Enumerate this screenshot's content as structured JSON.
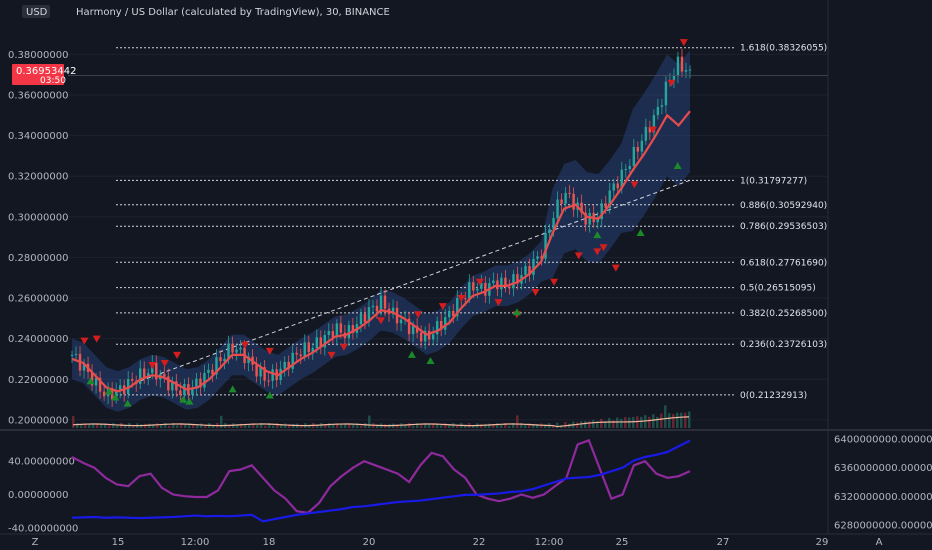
{
  "header": {
    "currency": "USD",
    "title": "Harmony / US Dollar (calculated by TradingView), 30, BINANCE"
  },
  "price_tag": {
    "price": "0.36953442",
    "countdown": "03:50"
  },
  "colors": {
    "background": "#131722",
    "candle_up": "#26a69a",
    "candle_down": "#ef5350",
    "ma_line": "#e84d4d",
    "band_fill": "#2a4a8a",
    "buy_marker": "#1b8a2a",
    "sell_marker": "#d41e1e",
    "volume_ma": "#f2b49a",
    "oscillator": "#8e2a9c",
    "second_line": "#1a1ae6",
    "fib_line": "#d1d4dc"
  },
  "chart_data": [
    {
      "type": "candlestick",
      "title": "Harmony / US Dollar (calculated by TradingView), 30, BINANCE",
      "ylim": [
        0.196,
        0.392
      ],
      "yticks": [
        "0.20000000",
        "0.22000000",
        "0.24000000",
        "0.26000000",
        "0.28000000",
        "0.30000000",
        "0.32000000",
        "0.34000000",
        "0.36000000",
        "0.38000000"
      ],
      "ytick_values": [
        0.2,
        0.22,
        0.24,
        0.26,
        0.28,
        0.3,
        0.32,
        0.34,
        0.36,
        0.38
      ],
      "xticks": [
        "Z",
        "15",
        "12:00",
        "18",
        "20",
        "22",
        "12:00",
        "25",
        "27",
        "29",
        "A"
      ],
      "close_series": [
        0.232,
        0.226,
        0.218,
        0.212,
        0.214,
        0.218,
        0.222,
        0.225,
        0.22,
        0.215,
        0.214,
        0.218,
        0.224,
        0.23,
        0.236,
        0.232,
        0.225,
        0.22,
        0.223,
        0.229,
        0.234,
        0.236,
        0.24,
        0.245,
        0.242,
        0.248,
        0.254,
        0.258,
        0.252,
        0.248,
        0.243,
        0.24,
        0.246,
        0.252,
        0.26,
        0.266,
        0.264,
        0.268,
        0.266,
        0.27,
        0.275,
        0.282,
        0.3,
        0.312,
        0.306,
        0.298,
        0.3,
        0.312,
        0.32,
        0.33,
        0.34,
        0.35,
        0.365,
        0.376,
        0.37
      ],
      "ma_series": [
        0.23,
        0.228,
        0.222,
        0.216,
        0.214,
        0.216,
        0.22,
        0.222,
        0.221,
        0.218,
        0.215,
        0.216,
        0.22,
        0.226,
        0.232,
        0.232,
        0.228,
        0.224,
        0.222,
        0.226,
        0.23,
        0.233,
        0.237,
        0.241,
        0.242,
        0.245,
        0.249,
        0.254,
        0.253,
        0.25,
        0.246,
        0.242,
        0.244,
        0.248,
        0.255,
        0.261,
        0.263,
        0.266,
        0.266,
        0.268,
        0.272,
        0.278,
        0.292,
        0.304,
        0.306,
        0.3,
        0.299,
        0.306,
        0.314,
        0.323,
        0.331,
        0.34,
        0.35,
        0.345,
        0.352
      ],
      "fib_levels": [
        {
          "label": "1.618(0.38326055)",
          "value": 0.38326055
        },
        {
          "label": "1(0.31797277)",
          "value": 0.31797277
        },
        {
          "label": "0.886(0.30592940)",
          "value": 0.3059294
        },
        {
          "label": "0.786(0.29536503)",
          "value": 0.29536503
        },
        {
          "label": "0.618(0.27761690)",
          "value": 0.2776169
        },
        {
          "label": "0.5(0.26515095)",
          "value": 0.26515095
        },
        {
          "label": "0.382(0.25268500)",
          "value": 0.252685
        },
        {
          "label": "0.236(0.23726103)",
          "value": 0.23726103
        },
        {
          "label": "0(0.21232913)",
          "value": 0.21232913
        }
      ],
      "trendline": {
        "from": [
          0.1,
          0.218
        ],
        "to": [
          1.0,
          0.318
        ]
      },
      "sell_markers": [
        {
          "t": 0.02,
          "v": 0.239
        },
        {
          "t": 0.04,
          "v": 0.24
        },
        {
          "t": 0.13,
          "v": 0.227
        },
        {
          "t": 0.15,
          "v": 0.228
        },
        {
          "t": 0.17,
          "v": 0.232
        },
        {
          "t": 0.28,
          "v": 0.237
        },
        {
          "t": 0.32,
          "v": 0.234
        },
        {
          "t": 0.42,
          "v": 0.232
        },
        {
          "t": 0.44,
          "v": 0.236
        },
        {
          "t": 0.5,
          "v": 0.249
        },
        {
          "t": 0.56,
          "v": 0.252
        },
        {
          "t": 0.6,
          "v": 0.256
        },
        {
          "t": 0.63,
          "v": 0.26
        },
        {
          "t": 0.66,
          "v": 0.268
        },
        {
          "t": 0.69,
          "v": 0.258
        },
        {
          "t": 0.72,
          "v": 0.252
        },
        {
          "t": 0.75,
          "v": 0.263
        },
        {
          "t": 0.78,
          "v": 0.268
        },
        {
          "t": 0.82,
          "v": 0.281
        },
        {
          "t": 0.85,
          "v": 0.283
        },
        {
          "t": 0.86,
          "v": 0.285
        },
        {
          "t": 0.88,
          "v": 0.275
        },
        {
          "t": 0.91,
          "v": 0.316
        },
        {
          "t": 0.94,
          "v": 0.343
        },
        {
          "t": 0.97,
          "v": 0.366
        },
        {
          "t": 0.99,
          "v": 0.386
        }
      ],
      "buy_markers": [
        {
          "t": 0.03,
          "v": 0.219
        },
        {
          "t": 0.06,
          "v": 0.214
        },
        {
          "t": 0.07,
          "v": 0.211
        },
        {
          "t": 0.09,
          "v": 0.208
        },
        {
          "t": 0.18,
          "v": 0.21
        },
        {
          "t": 0.19,
          "v": 0.209
        },
        {
          "t": 0.26,
          "v": 0.215
        },
        {
          "t": 0.32,
          "v": 0.212
        },
        {
          "t": 0.55,
          "v": 0.232
        },
        {
          "t": 0.58,
          "v": 0.229
        },
        {
          "t": 0.72,
          "v": 0.253
        },
        {
          "t": 0.85,
          "v": 0.291
        },
        {
          "t": 0.92,
          "v": 0.292
        },
        {
          "t": 0.98,
          "v": 0.325
        }
      ]
    },
    {
      "type": "line",
      "name": "lower-pane",
      "left_ylim": [
        -45,
        75
      ],
      "left_yticks": [
        "40.00000000",
        "0.00000000",
        "-40.00000000"
      ],
      "left_ytick_values": [
        40,
        0,
        -40
      ],
      "right_ylim": [
        6270000000,
        6410000000
      ],
      "right_yticks": [
        "6400000000.00000000",
        "6360000000.00000000",
        "6320000000.00000000",
        "6280000000.00000000"
      ],
      "right_ytick_values": [
        6400000000,
        6360000000,
        6320000000,
        6280000000
      ],
      "oscillator_series": [
        45,
        38,
        32,
        20,
        12,
        10,
        22,
        25,
        8,
        0,
        -2,
        -3,
        -3,
        5,
        28,
        30,
        35,
        20,
        5,
        -5,
        -20,
        -22,
        -10,
        10,
        22,
        32,
        40,
        35,
        30,
        25,
        15,
        35,
        50,
        46,
        30,
        20,
        0,
        -5,
        -8,
        -5,
        0,
        -4,
        0,
        10,
        20,
        60,
        65,
        30,
        -5,
        0,
        35,
        40,
        25,
        20,
        22,
        28
      ],
      "second_series": [
        6290000000,
        6290500000,
        6291000000,
        6290000000,
        6290500000,
        6290000000,
        6289500000,
        6290000000,
        6290500000,
        6291000000,
        6292000000,
        6293000000,
        6292000000,
        6292500000,
        6292000000,
        6293000000,
        6294000000,
        6285000000,
        6288000000,
        6291000000,
        6294000000,
        6296000000,
        6298000000,
        6300000000,
        6302000000,
        6305000000,
        6306000000,
        6308000000,
        6310000000,
        6312000000,
        6313000000,
        6314000000,
        6316000000,
        6318000000,
        6320000000,
        6322000000,
        6322000000,
        6323000000,
        6324000000,
        6326000000,
        6327000000,
        6330000000,
        6335000000,
        6340000000,
        6345000000,
        6346000000,
        6347000000,
        6350000000,
        6355000000,
        6360000000,
        6370000000,
        6375000000,
        6378000000,
        6382000000,
        6390000000,
        6398000000
      ]
    }
  ]
}
